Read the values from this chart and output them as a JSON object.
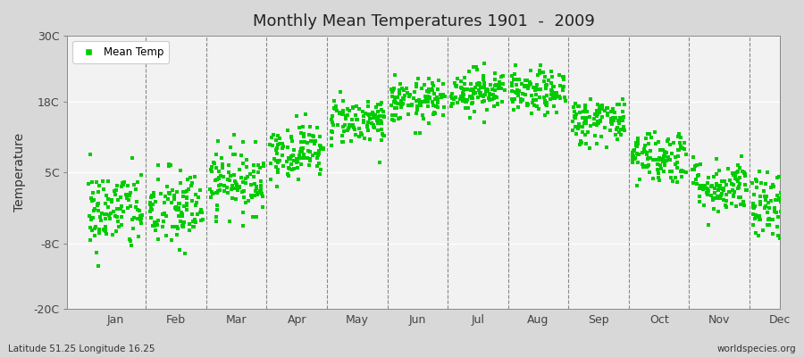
{
  "title": "Monthly Mean Temperatures 1901  -  2009",
  "ylabel": "Temperature",
  "subtitle_left": "Latitude 51.25 Longitude 16.25",
  "subtitle_right": "worldspecies.org",
  "yticks": [
    -20,
    -8,
    5,
    18,
    30
  ],
  "ytick_labels": [
    "-20C",
    "-8C",
    "5C",
    "18C",
    "30C"
  ],
  "ylim": [
    -20,
    30
  ],
  "months": [
    "Jan",
    "Feb",
    "Mar",
    "Apr",
    "May",
    "Jun",
    "Jul",
    "Aug",
    "Sep",
    "Oct",
    "Nov",
    "Dec"
  ],
  "dot_color": "#00cc00",
  "fig_bg_color": "#d8d8d8",
  "plot_bg_color": "#f2f2f2",
  "legend_label": "Mean Temp",
  "dot_size": 6,
  "years": 109,
  "monthly_means": [
    -2.0,
    -1.8,
    3.5,
    9.0,
    14.5,
    18.0,
    20.0,
    19.5,
    14.5,
    8.0,
    2.5,
    -1.5
  ],
  "monthly_stds": [
    3.8,
    3.8,
    3.0,
    2.5,
    2.2,
    2.0,
    2.0,
    2.0,
    2.2,
    2.5,
    2.5,
    3.2
  ]
}
